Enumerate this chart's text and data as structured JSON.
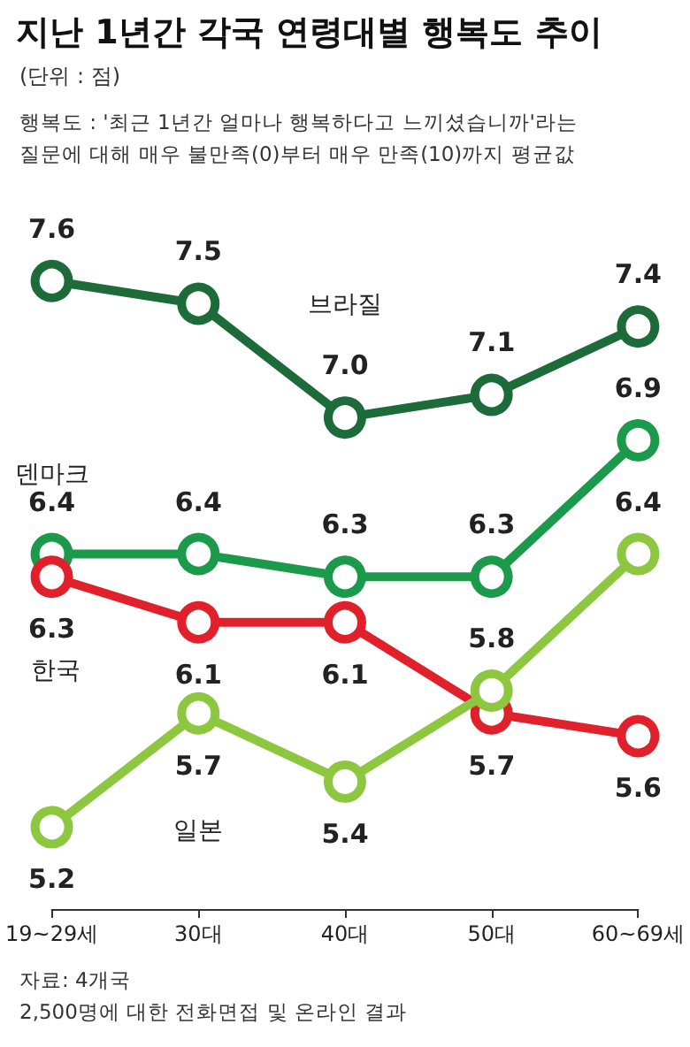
{
  "chart_data": {
    "type": "line",
    "title": "지난 1년간 각국 연령대별 행복도 추이",
    "subtitle": "(단위 : 점)",
    "annotations": [
      "행복도 : '최근 1년간 얼마나 행복하다고 느끼셨습니까'라는\n질문에 대해 매우 불만족(0)부터 매우 만족(10)까지 평균값",
      "자료: 4개국\n2,500명에 대한 전화면접 및 온라인 결과"
    ],
    "categories": [
      "19~29세",
      "30대",
      "40대",
      "50대",
      "60~69세"
    ],
    "series": [
      {
        "name": "브라질",
        "color": "#1e6b3a",
        "values": [
          7.6,
          7.5,
          7.0,
          7.1,
          7.4
        ],
        "value_labels": [
          "7.6",
          "7.5",
          "7.0",
          "7.1",
          "7.4"
        ]
      },
      {
        "name": "덴마크",
        "color": "#1a9a4a",
        "values": [
          6.4,
          6.4,
          6.3,
          6.3,
          6.9
        ],
        "value_labels": [
          "6.4",
          "6.4",
          "6.3",
          "6.3",
          "6.9"
        ]
      },
      {
        "name": "한국",
        "color": "#e0202a",
        "values": [
          6.3,
          6.1,
          6.1,
          5.7,
          5.6
        ],
        "value_labels": [
          "6.3",
          "6.1",
          "6.1",
          "5.7",
          "5.6"
        ]
      },
      {
        "name": "일본",
        "color": "#8dc63f",
        "values": [
          5.2,
          5.7,
          5.4,
          5.8,
          6.4
        ],
        "value_labels": [
          "5.2",
          "5.7",
          "5.4",
          "5.8",
          "6.4"
        ]
      }
    ],
    "marker": "circle",
    "line_style": "solid",
    "grid": false,
    "legend": false,
    "tick_labels": "x"
  }
}
